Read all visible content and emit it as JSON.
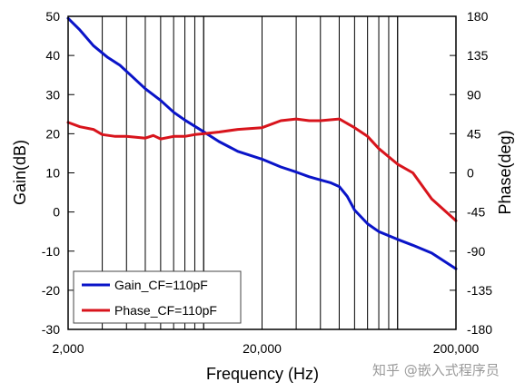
{
  "chart_data": {
    "type": "line",
    "title": "",
    "xlabel": "Frequency (Hz)",
    "ylabel_left": "Gain(dB)",
    "ylabel_right": "Phase(deg)",
    "x_scale": "log",
    "xlim": [
      2000,
      200000
    ],
    "ylim_left": [
      -30,
      50
    ],
    "ylim_right": [
      -180,
      180
    ],
    "x_tick_labels": [
      "2,000",
      "20,000",
      "200,000"
    ],
    "x_tick_values": [
      2000,
      20000,
      200000
    ],
    "y_left_ticks": [
      "50",
      "40",
      "30",
      "20",
      "10",
      "0",
      "-10",
      "-20",
      "-30"
    ],
    "y_right_ticks": [
      "180",
      "135",
      "90",
      "45",
      "0",
      "-45",
      "-90",
      "-135",
      "-180"
    ],
    "grid": "vertical-log",
    "legend_position": "bottom-left",
    "series": [
      {
        "name": "Gain_CF=110pF",
        "axis": "left",
        "color": "#0a14c8",
        "x": [
          2000,
          2300,
          2700,
          3200,
          3700,
          4300,
          5000,
          6000,
          7000,
          8000,
          10000,
          12000,
          15000,
          20000,
          25000,
          30000,
          35000,
          40000,
          45000,
          50000,
          55000,
          60000,
          70000,
          80000,
          100000,
          120000,
          150000,
          200000
        ],
        "values": [
          49.5,
          46.5,
          42.5,
          39.5,
          37.5,
          34.5,
          31.5,
          28.5,
          25.5,
          23.5,
          20.5,
          18.0,
          15.5,
          13.5,
          11.5,
          10.2,
          9.0,
          8.2,
          7.5,
          6.5,
          4.0,
          0.5,
          -3.0,
          -5.0,
          -7.0,
          -8.5,
          -10.5,
          -14.5
        ]
      },
      {
        "name": "Phase_CF=110pF",
        "axis": "right",
        "color": "#d8141c",
        "x": [
          2000,
          2300,
          2700,
          3000,
          3500,
          4000,
          5000,
          5500,
          6000,
          7000,
          8000,
          9000,
          10000,
          12000,
          15000,
          20000,
          25000,
          30000,
          35000,
          40000,
          50000,
          60000,
          70000,
          80000,
          100000,
          120000,
          150000,
          200000
        ],
        "values": [
          58,
          53,
          50,
          44,
          42,
          42,
          40,
          43,
          39,
          42,
          42,
          44,
          45,
          47,
          50,
          52,
          60,
          62,
          60,
          60,
          62,
          52,
          42,
          28,
          10,
          0,
          -30,
          -55
        ]
      }
    ]
  },
  "watermark": "知乎 @嵌入式程序员"
}
